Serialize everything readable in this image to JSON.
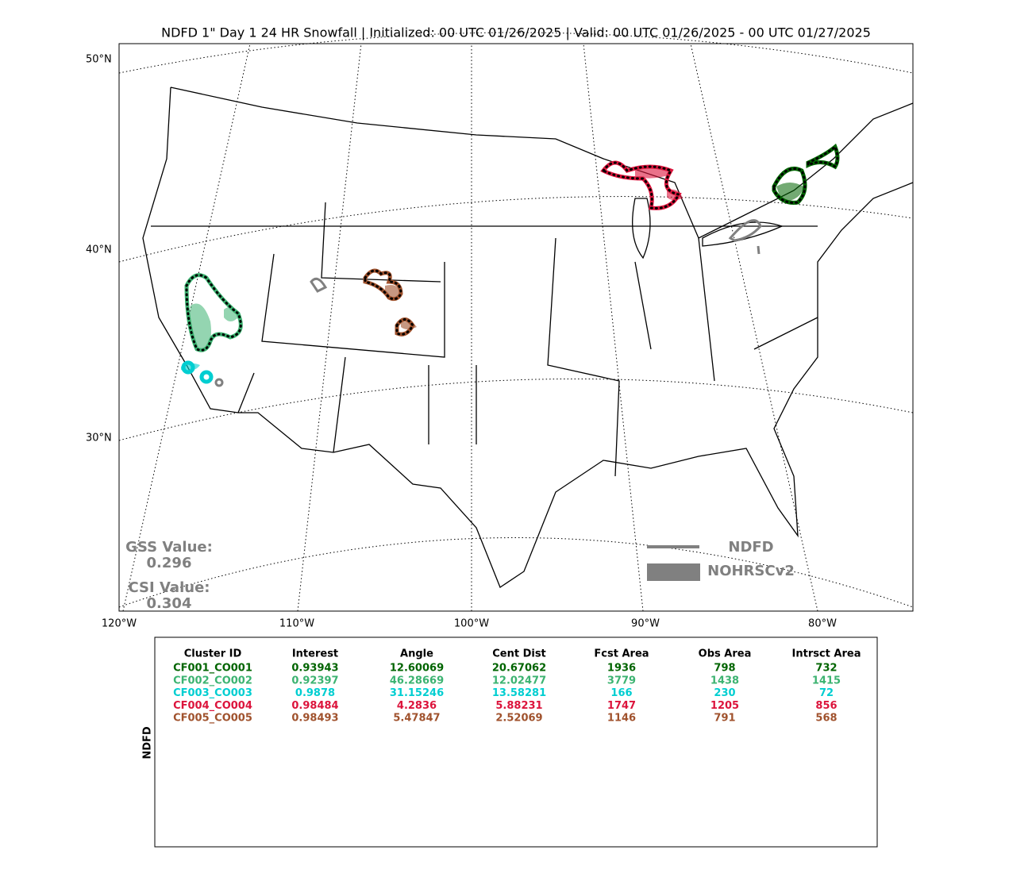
{
  "title": "NDFD 1\" Day 1 24 HR Snowfall | Initialized: 00 UTC 01/26/2025 | Valid: 00 UTC 01/26/2025 - 00 UTC 01/27/2025",
  "map": {
    "lat_labels": [
      "50°N",
      "40°N",
      "30°N"
    ],
    "lon_labels": [
      "120°W",
      "110°W",
      "100°W",
      "90°W",
      "80°W"
    ],
    "gss": {
      "label": "GSS Value:",
      "value": "0.296"
    },
    "csi": {
      "label": "CSI Value:",
      "value": "0.304"
    },
    "legend": [
      "NDFD",
      "NOHRSCv2"
    ]
  },
  "table": {
    "side_label": "NDFD",
    "headers": [
      "Cluster ID",
      "Interest",
      "Angle",
      "Cent Dist",
      "Fcst Area",
      "Obs Area",
      "Intrsct Area"
    ],
    "rows": [
      {
        "color": "#006400",
        "cells": [
          "CF001_CO001",
          "0.93943",
          "12.60069",
          "20.67062",
          "1936",
          "798",
          "732"
        ]
      },
      {
        "color": "#3cb371",
        "cells": [
          "CF002_CO002",
          "0.92397",
          "46.28669",
          "12.02477",
          "3779",
          "1438",
          "1415"
        ]
      },
      {
        "color": "#00ced1",
        "cells": [
          "CF003_CO003",
          "0.9878",
          "31.15246",
          "13.58281",
          "166",
          "230",
          "72"
        ]
      },
      {
        "color": "#dc143c",
        "cells": [
          "CF004_CO004",
          "0.98484",
          "4.2836",
          "5.88231",
          "1747",
          "1205",
          "856"
        ]
      },
      {
        "color": "#a0522d",
        "cells": [
          "CF005_CO005",
          "0.98493",
          "5.47847",
          "2.52069",
          "1146",
          "791",
          "568"
        ]
      }
    ]
  }
}
